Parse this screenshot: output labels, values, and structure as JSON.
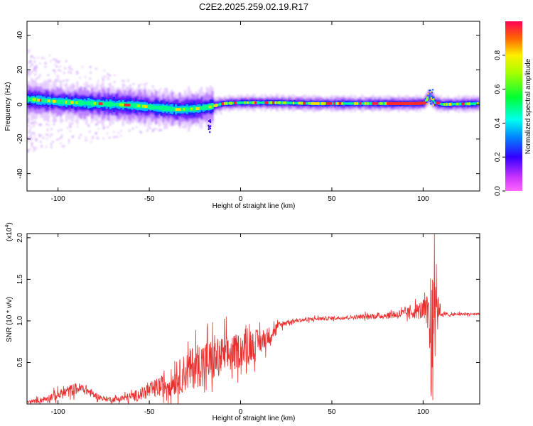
{
  "title": "C2E2.2025.259.02.19.R17",
  "colors": {
    "trace": "#e8312f",
    "axis": "#000000",
    "background": "#ffffff"
  },
  "chart_data": [
    {
      "type": "heatmap",
      "xlabel": "Height of straight line (km)",
      "ylabel": "Frequency (Hz)",
      "xlim": [
        -117,
        131
      ],
      "ylim": [
        -50,
        48
      ],
      "x_ticks": [
        -100,
        -50,
        0,
        50,
        100
      ],
      "y_ticks": [
        -40,
        -20,
        0,
        20,
        40
      ],
      "grid": false,
      "colorbar": {
        "label": "Normalized spectral amplitude",
        "range": [
          0,
          1
        ],
        "ticks": [
          "0.0",
          "0.2",
          "0.4",
          "0.6",
          "0.8"
        ],
        "colormap": "rainbow (magenta-blue-cyan-green-yellow-red)"
      },
      "ridge": {
        "x": [
          -117,
          -100,
          -80,
          -60,
          -45,
          -35,
          -25,
          -18,
          -10,
          0,
          10,
          20,
          40,
          60,
          80,
          95,
          100,
          103,
          106,
          110,
          131
        ],
        "y": [
          3,
          1.5,
          0.5,
          -0.5,
          -2,
          -3,
          -2.5,
          -1.5,
          0.5,
          1,
          1,
          1,
          0.5,
          0.5,
          0.5,
          0.5,
          0.8,
          5,
          1,
          0,
          0.5
        ]
      }
    },
    {
      "type": "line",
      "xlabel": "Height of straight line (km)",
      "ylabel": "SNR (10 * v/v)",
      "y_multiplier": "(x10",
      "y_multiplier_exp": "4",
      "xlim": [
        -117,
        131
      ],
      "ylim": [
        0,
        2.05
      ],
      "y_unit_scale": 10000,
      "x_ticks": [
        -100,
        -50,
        0,
        50,
        100
      ],
      "y_ticks": [
        "0.5",
        "1.0",
        "1.5",
        "2.0"
      ],
      "grid": false,
      "series": [
        {
          "x": [
            -117,
            -110,
            -100,
            -95,
            -90,
            -85,
            -80,
            -75,
            -70,
            -65,
            -60,
            -55,
            -50,
            -45,
            -40,
            -35,
            -30,
            -25,
            -20,
            -15,
            -10,
            -5,
            0,
            5,
            10,
            15,
            20,
            25,
            30,
            40,
            50,
            60,
            70,
            80,
            90,
            95,
            100,
            103,
            105,
            106,
            107,
            108,
            110,
            115,
            120,
            131
          ],
          "y": [
            0.02,
            0.04,
            0.1,
            0.14,
            0.18,
            0.17,
            0.1,
            0.06,
            0.05,
            0.06,
            0.08,
            0.11,
            0.15,
            0.19,
            0.22,
            0.28,
            0.36,
            0.43,
            0.47,
            0.5,
            0.55,
            0.58,
            0.63,
            0.67,
            0.72,
            0.8,
            0.92,
            0.98,
            1.0,
            1.02,
            1.03,
            1.04,
            1.05,
            1.06,
            1.08,
            1.1,
            1.12,
            1.0,
            0.4,
            1.6,
            1.3,
            1.2,
            1.08,
            1.07,
            1.08,
            1.08
          ],
          "noise": [
            0.02,
            0.04,
            0.07,
            0.09,
            0.09,
            0.08,
            0.05,
            0.04,
            0.04,
            0.05,
            0.07,
            0.09,
            0.12,
            0.15,
            0.18,
            0.24,
            0.3,
            0.34,
            0.34,
            0.32,
            0.3,
            0.28,
            0.26,
            0.24,
            0.2,
            0.14,
            0.07,
            0.04,
            0.03,
            0.03,
            0.03,
            0.03,
            0.04,
            0.05,
            0.08,
            0.1,
            0.16,
            0.35,
            0.6,
            0.55,
            0.45,
            0.25,
            0.05,
            0.02,
            0.02,
            0.02
          ]
        }
      ]
    }
  ]
}
